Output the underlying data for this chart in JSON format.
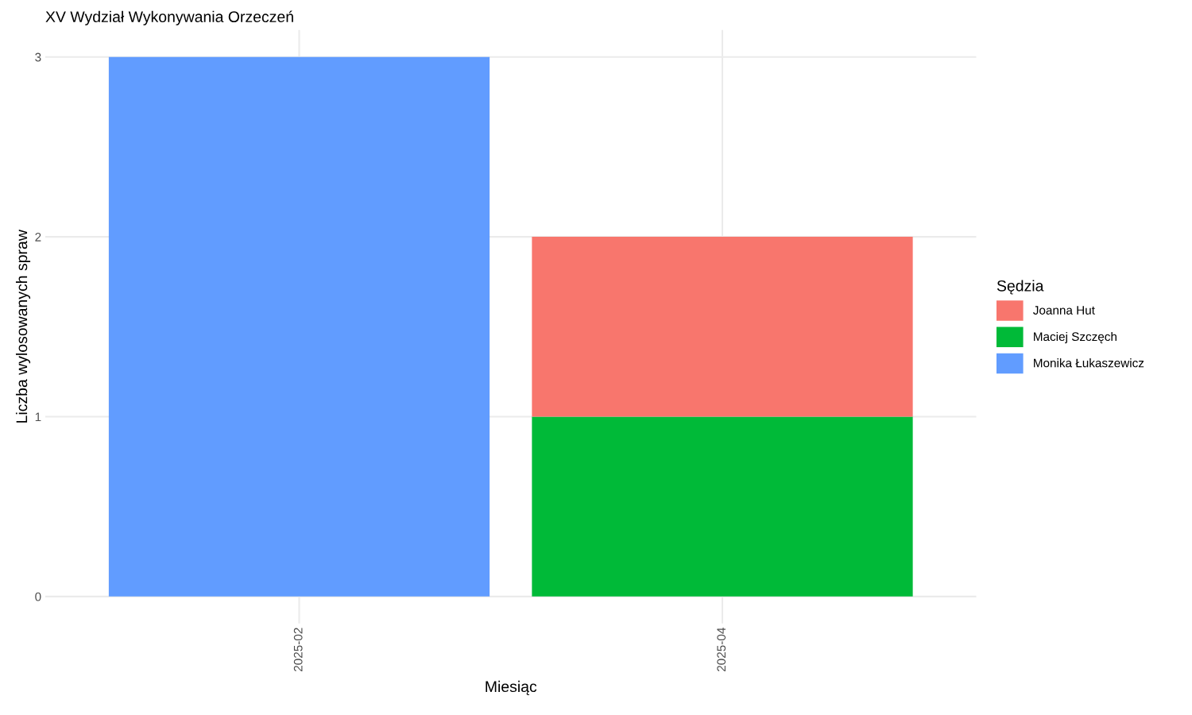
{
  "chart_data": {
    "type": "bar",
    "title": "XV Wydział Wykonywania Orzeczeń",
    "xlabel": "Miesiąc",
    "ylabel": "Liczba wylosowanych spraw",
    "legend_title": "Sędzia",
    "categories": [
      "2025-02",
      "2025-04"
    ],
    "series": [
      {
        "name": "Monika Łukaszewicz",
        "color": "#619cff",
        "values": [
          3,
          null
        ]
      },
      {
        "name": "Maciej Szczęch",
        "color": "#00ba38",
        "values": [
          null,
          1
        ]
      },
      {
        "name": "Joanna Hut",
        "color": "#f8766d",
        "values": [
          null,
          1
        ]
      }
    ],
    "stacked": true,
    "ylim": [
      -0.15,
      3.15
    ],
    "yticks": [
      0,
      1,
      2,
      3
    ],
    "grid": true,
    "legend": "right"
  }
}
